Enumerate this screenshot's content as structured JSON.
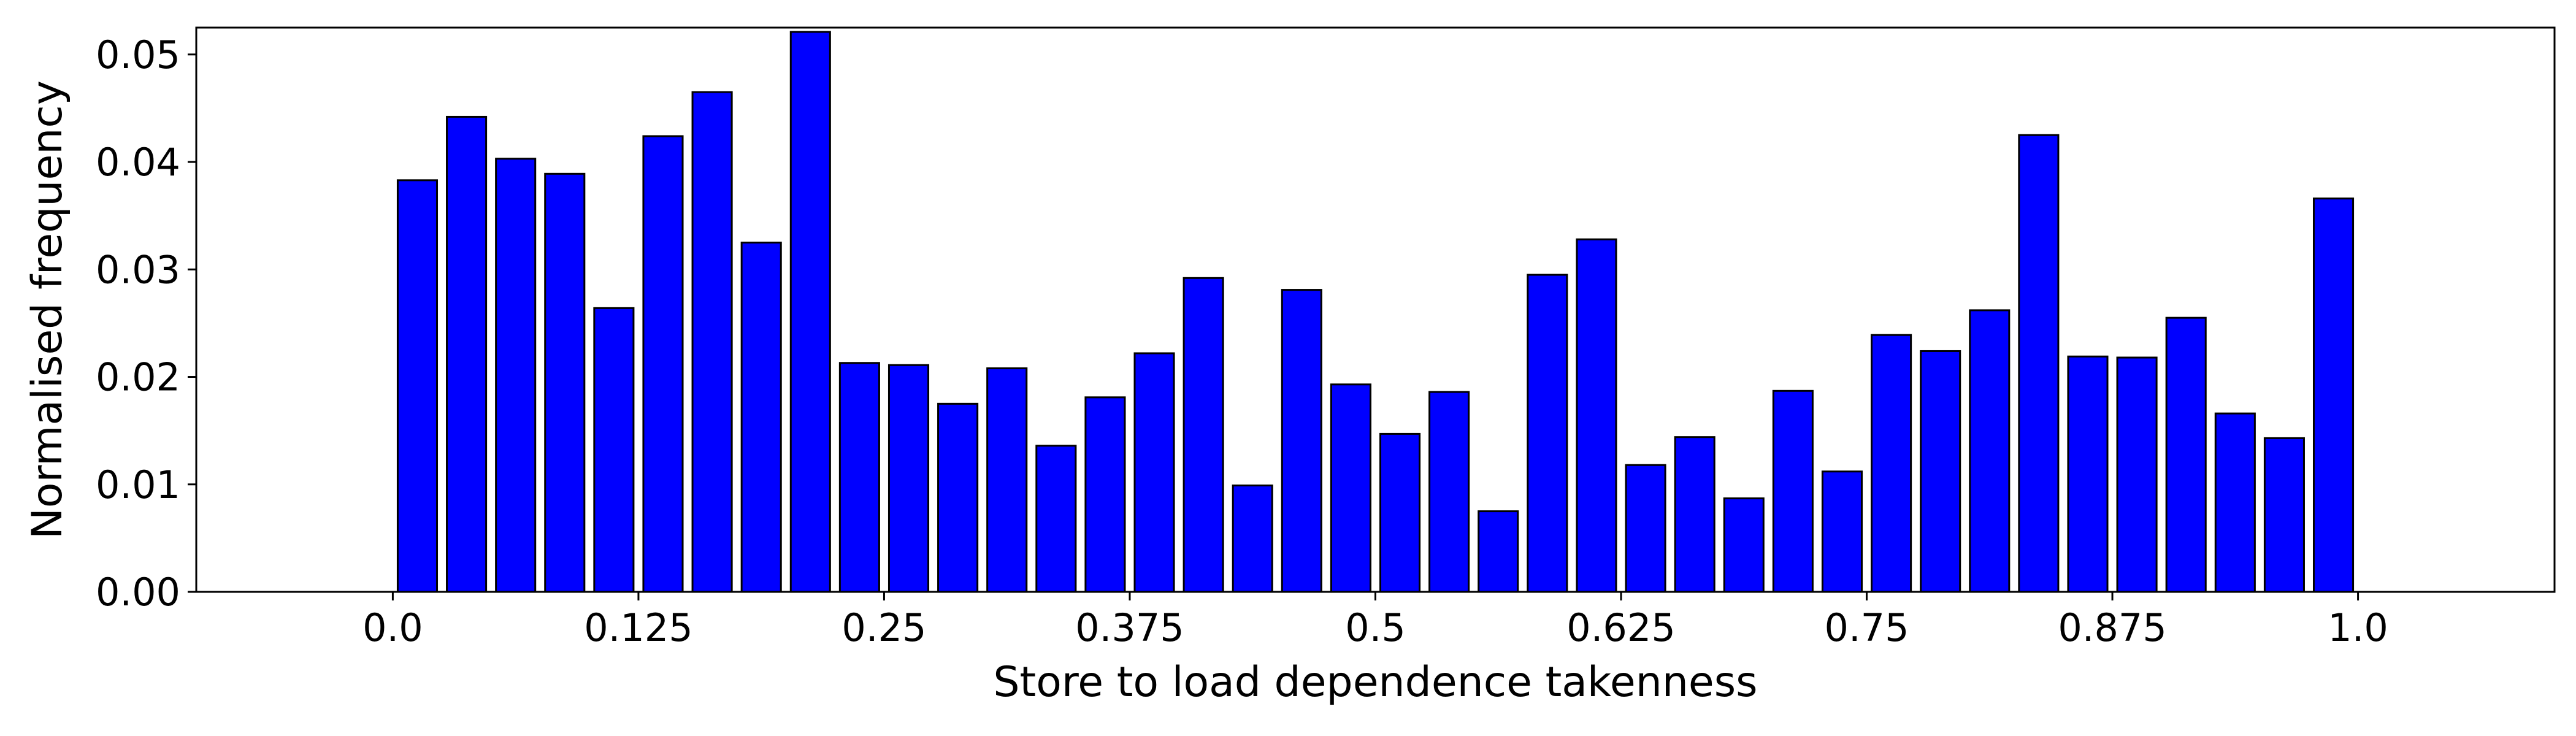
{
  "chart_data": {
    "type": "bar",
    "xlabel": "Store to load dependence takenness",
    "ylabel": "Normalised frequency",
    "xlim": [
      -0.1,
      1.1
    ],
    "ylim": [
      0,
      0.0525
    ],
    "bar_color": "#0000ff",
    "edge_color": "#000000",
    "bar_width": 0.02,
    "x_ticks": [
      {
        "value": 0.0,
        "label": "0.0"
      },
      {
        "value": 0.125,
        "label": "0.125"
      },
      {
        "value": 0.25,
        "label": "0.25"
      },
      {
        "value": 0.375,
        "label": "0.375"
      },
      {
        "value": 0.5,
        "label": "0.5"
      },
      {
        "value": 0.625,
        "label": "0.625"
      },
      {
        "value": 0.75,
        "label": "0.75"
      },
      {
        "value": 0.875,
        "label": "0.875"
      },
      {
        "value": 1.0,
        "label": "1.0"
      }
    ],
    "y_ticks": [
      {
        "value": 0.0,
        "label": "0.00"
      },
      {
        "value": 0.01,
        "label": "0.01"
      },
      {
        "value": 0.02,
        "label": "0.02"
      },
      {
        "value": 0.03,
        "label": "0.03"
      },
      {
        "value": 0.04,
        "label": "0.04"
      },
      {
        "value": 0.05,
        "label": "0.05"
      }
    ],
    "x": [
      0.0125,
      0.0375,
      0.0625,
      0.0875,
      0.1125,
      0.1375,
      0.1625,
      0.1875,
      0.2125,
      0.2375,
      0.2625,
      0.2875,
      0.3125,
      0.3375,
      0.3625,
      0.3875,
      0.4125,
      0.4375,
      0.4625,
      0.4875,
      0.5125,
      0.5375,
      0.5625,
      0.5875,
      0.6125,
      0.6375,
      0.6625,
      0.6875,
      0.7125,
      0.7375,
      0.7625,
      0.7875,
      0.8125,
      0.8375,
      0.8625,
      0.8875,
      0.9125,
      0.9375,
      0.9625,
      0.9875
    ],
    "values": [
      0.0383,
      0.0442,
      0.0403,
      0.0389,
      0.0264,
      0.0424,
      0.0465,
      0.0325,
      0.0521,
      0.0213,
      0.0211,
      0.0175,
      0.0208,
      0.0136,
      0.0181,
      0.0222,
      0.0292,
      0.0099,
      0.0281,
      0.0193,
      0.0147,
      0.0186,
      0.0075,
      0.0295,
      0.0328,
      0.0118,
      0.0144,
      0.0087,
      0.0187,
      0.0112,
      0.0239,
      0.0224,
      0.0262,
      0.0425,
      0.0219,
      0.0218,
      0.0255,
      0.0166,
      0.0143,
      0.0366
    ]
  }
}
